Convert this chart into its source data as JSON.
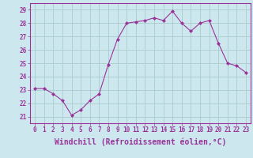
{
  "x": [
    0,
    1,
    2,
    3,
    4,
    5,
    6,
    7,
    8,
    9,
    10,
    11,
    12,
    13,
    14,
    15,
    16,
    17,
    18,
    19,
    20,
    21,
    22,
    23
  ],
  "y": [
    23.1,
    23.1,
    22.7,
    22.2,
    21.1,
    21.5,
    22.2,
    22.7,
    24.9,
    26.8,
    28.0,
    28.1,
    28.2,
    28.4,
    28.2,
    28.9,
    28.0,
    27.4,
    28.0,
    28.2,
    26.5,
    25.0,
    24.8,
    24.3
  ],
  "line_color": "#993399",
  "marker": "D",
  "marker_size": 2.0,
  "bg_color": "#cce8ee",
  "grid_color": "#aacccc",
  "xlabel": "Windchill (Refroidissement éolien,°C)",
  "ylabel_ticks": [
    21,
    22,
    23,
    24,
    25,
    26,
    27,
    28,
    29
  ],
  "xtick_labels": [
    "0",
    "1",
    "2",
    "3",
    "4",
    "5",
    "6",
    "7",
    "8",
    "9",
    "10",
    "11",
    "12",
    "13",
    "14",
    "15",
    "16",
    "17",
    "18",
    "19",
    "20",
    "21",
    "22",
    "23"
  ],
  "ylim": [
    20.5,
    29.5
  ],
  "xlim": [
    -0.5,
    23.5
  ],
  "axis_fontsize": 6.5,
  "tick_fontsize": 5.5,
  "xlabel_fontsize": 7.0
}
